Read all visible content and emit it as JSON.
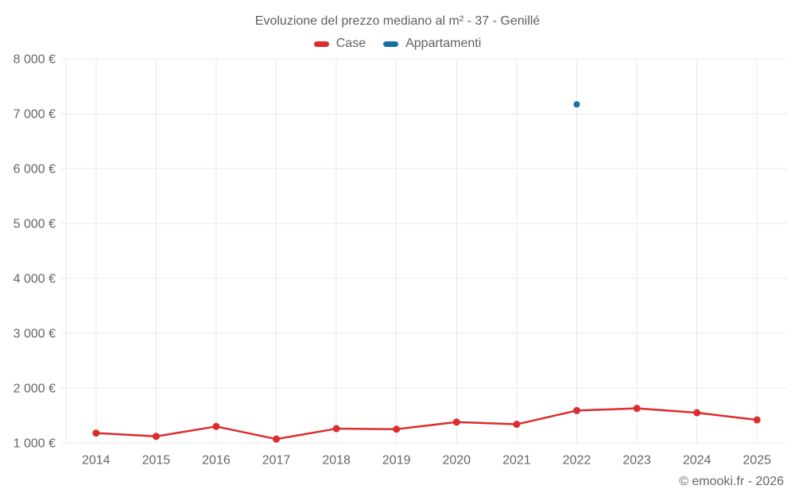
{
  "title": "Evoluzione del prezzo mediano al m² - 37 - Genillé",
  "footer": {
    "copyright": "© emooki.fr - 2026"
  },
  "chart_data": {
    "type": "line",
    "title": "Evoluzione del prezzo mediano al m² - 37 - Genillé",
    "categories": [
      "2014",
      "2015",
      "2016",
      "2017",
      "2018",
      "2019",
      "2020",
      "2021",
      "2022",
      "2023",
      "2024",
      "2025"
    ],
    "series": [
      {
        "name": "Case",
        "color": "#dd2c2e",
        "values": [
          1180,
          1120,
          1300,
          1070,
          1260,
          1250,
          1380,
          1340,
          1590,
          1630,
          1550,
          1420
        ]
      },
      {
        "name": "Appartamenti",
        "color": "#1771a6",
        "values": [
          null,
          null,
          null,
          null,
          null,
          null,
          null,
          null,
          7170,
          null,
          null,
          null
        ]
      }
    ],
    "xlabel": "",
    "ylabel": "",
    "ylim": [
      1000,
      8000
    ],
    "y_ticks": [
      1000,
      2000,
      3000,
      4000,
      5000,
      6000,
      7000,
      8000
    ],
    "y_tick_labels": [
      "1 000 €",
      "2 000 €",
      "3 000 €",
      "4 000 €",
      "5 000 €",
      "6 000 €",
      "7 000 €",
      "8 000 €"
    ],
    "grid": true,
    "legend_position": "top"
  }
}
